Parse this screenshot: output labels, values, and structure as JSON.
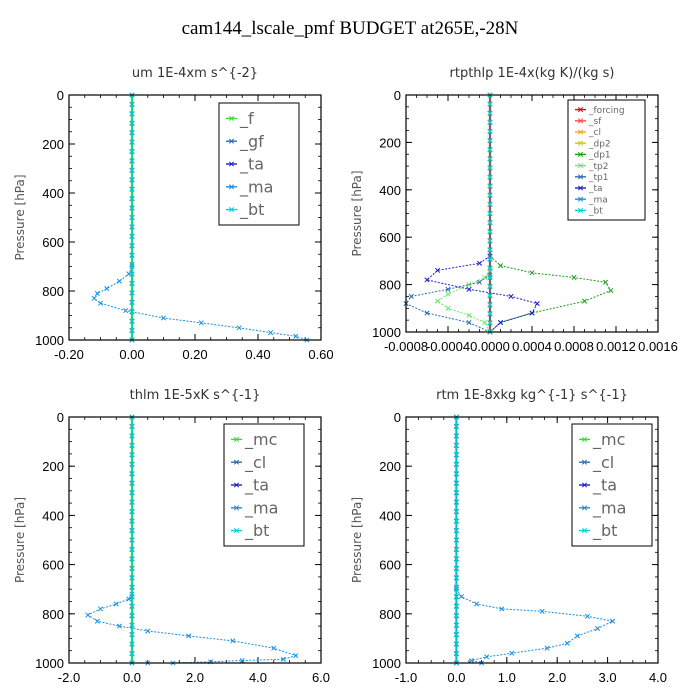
{
  "title": "cam144_lscale_pmf  BUDGET at265E,-28N",
  "chart_data": [
    {
      "type": "line",
      "title": "um   1E-4xm s^{-2}",
      "ylabel": "Pressure [hPa]",
      "xlim": [
        -0.2,
        0.6
      ],
      "ylim": [
        1000,
        0
      ],
      "xticks": [
        "-0.20",
        "0.00",
        "0.20",
        "0.40",
        "0.60"
      ],
      "yticks": [
        "0",
        "200",
        "400",
        "600",
        "800",
        "1000"
      ],
      "legend_size": "large",
      "series": [
        {
          "name": "_f",
          "color": "#33dd33",
          "x": [
            0,
            0
          ],
          "y": [
            0,
            1000
          ]
        },
        {
          "name": "_gf",
          "color": "#2a6fb0",
          "x": [
            0,
            0
          ],
          "y": [
            0,
            1000
          ]
        },
        {
          "name": "_ta",
          "color": "#1f1fc8",
          "x": [
            0,
            0
          ],
          "y": [
            0,
            1000
          ]
        },
        {
          "name": "_ma",
          "color": "#1a8fe0",
          "x": [
            0,
            -0.01,
            -0.04,
            -0.08,
            -0.11,
            -0.12,
            -0.1,
            -0.02,
            0.1,
            0.22,
            0.34,
            0.44,
            0.52,
            0.555
          ],
          "y": [
            700,
            730,
            760,
            790,
            810,
            830,
            850,
            880,
            910,
            930,
            950,
            970,
            985,
            1000
          ]
        },
        {
          "name": "_bt",
          "color": "#00d0d0",
          "x": [
            0,
            0
          ],
          "y": [
            0,
            1000
          ]
        }
      ]
    },
    {
      "type": "line",
      "title": "rtpthlp   1E-4x(kg K)/(kg s)",
      "ylabel": "Pressure [hPa]",
      "xlim": [
        -0.0008,
        0.0016
      ],
      "ylim": [
        1000,
        0
      ],
      "xticks": [
        "-0.0008",
        "-0.0004",
        "0.0000",
        "0.0004",
        "0.0008",
        "0.0012",
        "0.0016"
      ],
      "yticks": [
        "0",
        "200",
        "400",
        "600",
        "800",
        "1000"
      ],
      "legend_size": "small",
      "series": [
        {
          "name": "_forcing",
          "color": "#e00000",
          "x": [
            0,
            0
          ],
          "y": [
            0,
            1000
          ]
        },
        {
          "name": "_sf",
          "color": "#ff4a4a",
          "x": [
            0,
            0
          ],
          "y": [
            0,
            1000
          ]
        },
        {
          "name": "_cl",
          "color": "#ffa500",
          "x": [
            0,
            0
          ],
          "y": [
            0,
            1000
          ]
        },
        {
          "name": "_dp2",
          "color": "#d6c800",
          "x": [
            0,
            0
          ],
          "y": [
            0,
            1000
          ]
        },
        {
          "name": "_dp1",
          "color": "#1a9e1a",
          "x": [
            0,
            0.0001,
            0.0004,
            0.0008,
            0.0011,
            0.00115,
            0.0009,
            0.0004,
            0.0001,
            0
          ],
          "y": [
            680,
            720,
            750,
            770,
            790,
            825,
            870,
            920,
            960,
            1000
          ]
        },
        {
          "name": "_tp2",
          "color": "#66ee66",
          "x": [
            0,
            -5e-05,
            -0.0002,
            -0.0004,
            -0.0005,
            -0.0004,
            -0.0002,
            -5e-05,
            0
          ],
          "y": [
            740,
            770,
            800,
            840,
            870,
            900,
            930,
            960,
            1000
          ]
        },
        {
          "name": "_tp1",
          "color": "#2a6fb0",
          "x": [
            0,
            -0.0001,
            -0.0004,
            -0.00075,
            -0.0008,
            -0.0006,
            -0.0002,
            0
          ],
          "y": [
            760,
            790,
            820,
            850,
            880,
            920,
            960,
            1000
          ]
        },
        {
          "name": "_ta",
          "color": "#1f1fc8",
          "x": [
            0,
            -0.0001,
            -0.0005,
            -0.0006,
            -0.0002,
            0.0002,
            0.00045,
            0.0004,
            0.0001,
            0
          ],
          "y": [
            680,
            710,
            740,
            780,
            820,
            850,
            880,
            920,
            960,
            1000
          ]
        },
        {
          "name": "_ma",
          "color": "#1a8fe0",
          "x": [
            0,
            0
          ],
          "y": [
            0,
            1000
          ]
        },
        {
          "name": "_bt",
          "color": "#00d0d0",
          "x": [
            0,
            0
          ],
          "y": [
            0,
            1000
          ]
        }
      ]
    },
    {
      "type": "line",
      "title": "thlm   1E-5xK  s^{-1}",
      "ylabel": "Pressure [hPa]",
      "xlim": [
        -2,
        6
      ],
      "ylim": [
        1000,
        0
      ],
      "xticks": [
        "-2.0",
        "0.0",
        "2.0",
        "4.0",
        "6.0"
      ],
      "yticks": [
        "0",
        "200",
        "400",
        "600",
        "800",
        "1000"
      ],
      "legend_size": "large",
      "series": [
        {
          "name": "_mc",
          "color": "#33dd33",
          "x": [
            0,
            0
          ],
          "y": [
            0,
            1000
          ]
        },
        {
          "name": "_cl",
          "color": "#2a6fb0",
          "x": [
            0,
            0
          ],
          "y": [
            0,
            1000
          ]
        },
        {
          "name": "_ta",
          "color": "#1f1fc8",
          "x": [
            0,
            0
          ],
          "y": [
            0,
            1000
          ]
        },
        {
          "name": "_ma",
          "color": "#1a8fe0",
          "x": [
            0,
            -0.1,
            -0.5,
            -1.0,
            -1.4,
            -1.1,
            -0.4,
            0.5,
            1.8,
            3.2,
            4.5,
            5.2,
            4.8,
            3.5,
            2.5,
            1.3,
            0.5
          ],
          "y": [
            720,
            740,
            760,
            780,
            805,
            830,
            850,
            870,
            890,
            910,
            940,
            970,
            985,
            990,
            995,
            1000,
            1000
          ]
        },
        {
          "name": "_bt",
          "color": "#00d0d0",
          "x": [
            0,
            0
          ],
          "y": [
            0,
            1000
          ]
        }
      ]
    },
    {
      "type": "line",
      "title": "rtm   1E-8xkg kg^{-1} s^{-1}",
      "ylabel": "Pressure [hPa]",
      "xlim": [
        -1,
        4
      ],
      "ylim": [
        1000,
        0
      ],
      "xticks": [
        "-1.0",
        "0.0",
        "1.0",
        "2.0",
        "3.0",
        "4.0"
      ],
      "yticks": [
        "0",
        "200",
        "400",
        "600",
        "800",
        "1000"
      ],
      "legend_size": "large",
      "series": [
        {
          "name": "_mc",
          "color": "#33dd33",
          "x": [
            0,
            0
          ],
          "y": [
            0,
            1000
          ]
        },
        {
          "name": "_cl",
          "color": "#2a6fb0",
          "x": [
            0,
            0
          ],
          "y": [
            0,
            1000
          ]
        },
        {
          "name": "_ta",
          "color": "#1f1fc8",
          "x": [
            0,
            0
          ],
          "y": [
            0,
            1000
          ]
        },
        {
          "name": "_ma",
          "color": "#1a8fe0",
          "x": [
            0,
            0.1,
            0.4,
            0.9,
            1.7,
            2.6,
            3.1,
            2.8,
            2.4,
            2.2,
            1.8,
            1.1,
            0.6,
            0.3,
            0.5
          ],
          "y": [
            700,
            730,
            760,
            780,
            790,
            810,
            830,
            860,
            890,
            920,
            940,
            960,
            975,
            990,
            1000
          ]
        },
        {
          "name": "_bt",
          "color": "#00d0d0",
          "x": [
            0,
            0
          ],
          "y": [
            0,
            1000
          ]
        }
      ]
    }
  ]
}
